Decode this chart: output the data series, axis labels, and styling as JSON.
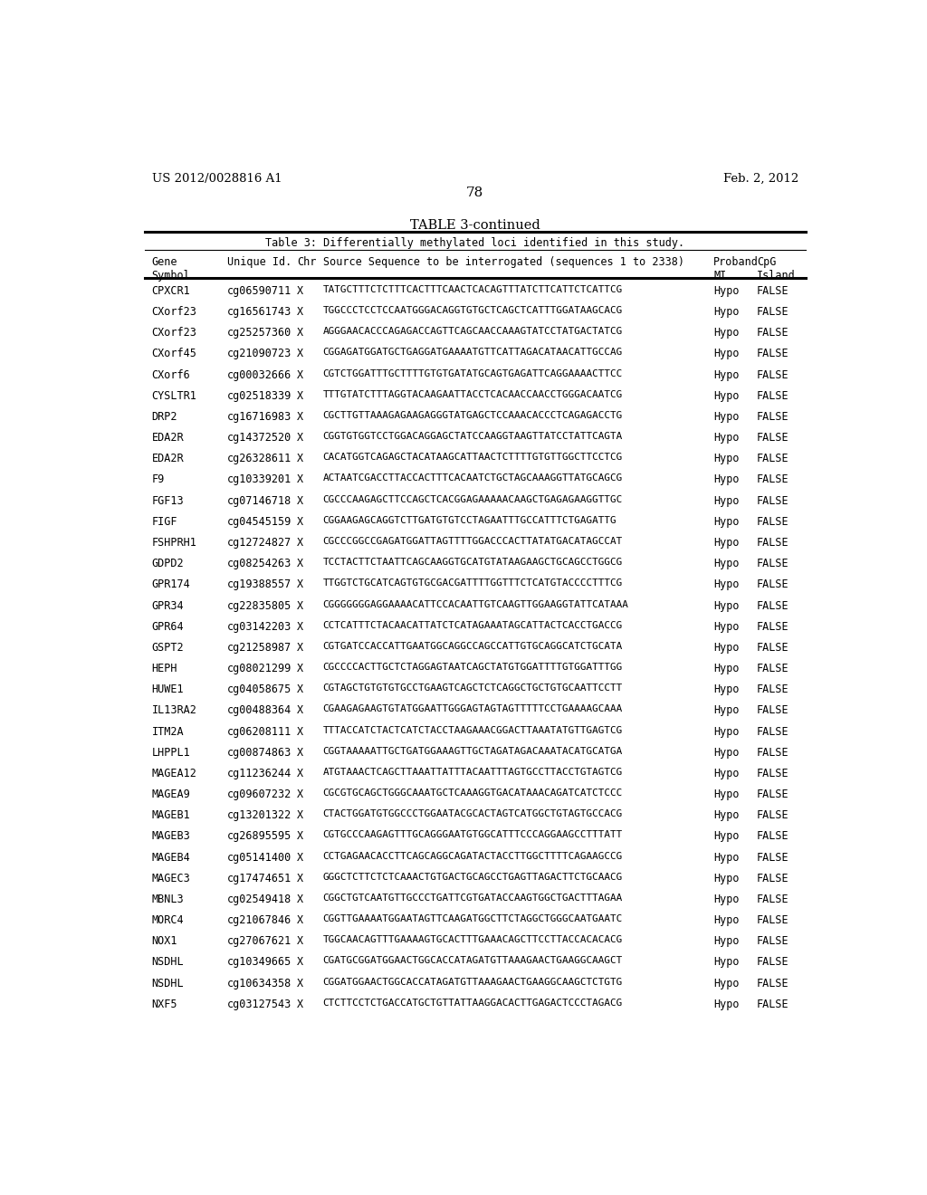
{
  "header_left": "US 2012/0028816 A1",
  "header_right": "Feb. 2, 2012",
  "page_number": "78",
  "table_title": "TABLE 3-continued",
  "table_subtitle": "Table 3: Differentially methylated loci identified in this study.",
  "rows": [
    [
      "CPXCR1",
      "cg06590711",
      "X",
      "TATGCTTTCTCTTTCACTTTCAACTCACAGTTTATCTTCATTCTCATTCG",
      "Hypo",
      "FALSE"
    ],
    [
      "CXorf23",
      "cg16561743",
      "X",
      "TGGCCCTCCTCCAATGGGACAGGTGTGCTCAGCTCATTTGGATAAGCACG",
      "Hypo",
      "FALSE"
    ],
    [
      "CXorf23",
      "cg25257360",
      "X",
      "AGGGAACACCCAGAGACCAGTTCAGCAACCAAAGTATCCTATGACTATCG",
      "Hypo",
      "FALSE"
    ],
    [
      "CXorf45",
      "cg21090723",
      "X",
      "CGGAGATGGATGCTGAGGATGAAAATGTTCATTAGACATAACATTGCCAG",
      "Hypo",
      "FALSE"
    ],
    [
      "CXorf6",
      "cg00032666",
      "X",
      "CGTCTGGATTTGCTTTTGTGTGATATGCAGTGAGATTCAGGAAAACTTCC",
      "Hypo",
      "FALSE"
    ],
    [
      "CYSLTR1",
      "cg02518339",
      "X",
      "TTTGTATCTTTAGGTACAAGAATTACCTCACAACCAACCTGGGACAATCG",
      "Hypo",
      "FALSE"
    ],
    [
      "DRP2",
      "cg16716983",
      "X",
      "CGCTTGTTAAAGAGAAGAGGGTATGAGCTCCAAACACCCTCAGAGACCTG",
      "Hypo",
      "FALSE"
    ],
    [
      "EDA2R",
      "cg14372520",
      "X",
      "CGGTGTGGTCCTGGACAGGAGCTATCCAAGGTAAGTTATCCTATTCAGTA",
      "Hypo",
      "FALSE"
    ],
    [
      "EDA2R",
      "cg26328611",
      "X",
      "CACATGGTCAGAGCTACATAAGCATTAACTCTTTTGTGTTGGCTTCCTCG",
      "Hypo",
      "FALSE"
    ],
    [
      "F9",
      "cg10339201",
      "X",
      "ACTAATCGACCTTACCACTTTCACAATCTGCTAGCAAAGGTTATGCAGCG",
      "Hypo",
      "FALSE"
    ],
    [
      "FGF13",
      "cg07146718",
      "X",
      "CGCCCAAGAGCTTCCAGCTCACGGAGAAAAACAAGCTGAGAGAAGGTTGC",
      "Hypo",
      "FALSE"
    ],
    [
      "FIGF",
      "cg04545159",
      "X",
      "CGGAAGAGCAGGTCTTGATGTGTCCTAGAATTTGCCATTTCTGAGATTG",
      "Hypo",
      "FALSE"
    ],
    [
      "FSHPRH1",
      "cg12724827",
      "X",
      "CGCCCGGCCGAGATGGATTAGTTTTGGACCCACTTATATGACATAGCCAT",
      "Hypo",
      "FALSE"
    ],
    [
      "GDPD2",
      "cg08254263",
      "X",
      "TCCTACTTCTAATTCAGCAAGGTGCATGTATAAGAAGCTGCAGCCTGGCG",
      "Hypo",
      "FALSE"
    ],
    [
      "GPR174",
      "cg19388557",
      "X",
      "TTGGTCTGCATCAGTGTGCGACGATTTTGGTTTCTCATGTACCCCTTTCG",
      "Hypo",
      "FALSE"
    ],
    [
      "GPR34",
      "cg22835805",
      "X",
      "CGGGGGGGAGGAAAACATTCCACAATTGTCAAGTTGGAAGGTATTCATAAA",
      "Hypo",
      "FALSE"
    ],
    [
      "GPR64",
      "cg03142203",
      "X",
      "CCTCATTTCTACAACATTATCTCATAGAAATAGCATTACTCACCTGACCG",
      "Hypo",
      "FALSE"
    ],
    [
      "GSPT2",
      "cg21258987",
      "X",
      "CGTGATCCACCATTGAATGGCAGGCCAGCCATTGTGCAGGCATCTGCATA",
      "Hypo",
      "FALSE"
    ],
    [
      "HEPH",
      "cg08021299",
      "X",
      "CGCCCCACTTGCTCTAGGAGTAATCAGCTATGTGGATTTTGTGGATTTGG",
      "Hypo",
      "FALSE"
    ],
    [
      "HUWE1",
      "cg04058675",
      "X",
      "CGTAGCTGTGTGTGCCTGAAGTCAGCTCTCAGGCTGCTGTGCAATTCCTT",
      "Hypo",
      "FALSE"
    ],
    [
      "IL13RA2",
      "cg00488364",
      "X",
      "CGAAGAGAAGTGTATGGAATTGGGAGTAGTAGTTTTTCCTGAAAAGCAAA",
      "Hypo",
      "FALSE"
    ],
    [
      "ITM2A",
      "cg06208111",
      "X",
      "TTTACCATCTACTCATCTACCTAAGAAACGGACTTAAATATGTTGAGTCG",
      "Hypo",
      "FALSE"
    ],
    [
      "LHPPL1",
      "cg00874863",
      "X",
      "CGGTAAAAATTGCTGATGGAAAGTTGCTAGATAGACAAATACATGCATGA",
      "Hypo",
      "FALSE"
    ],
    [
      "MAGEA12",
      "cg11236244",
      "X",
      "ATGTAAACTCAGCTTAAATTATTTACAATTTAGTGCCTTACCTGTAGTCG",
      "Hypo",
      "FALSE"
    ],
    [
      "MAGEA9",
      "cg09607232",
      "X",
      "CGCGTGCAGCTGGGCAAATGCTCAAAGGTGACATAAACAGATCATCTCCC",
      "Hypo",
      "FALSE"
    ],
    [
      "MAGEB1",
      "cg13201322",
      "X",
      "CTACTGGATGTGGCCCTGGAATACGCACTAGTCATGGCTGTAGTGCCACG",
      "Hypo",
      "FALSE"
    ],
    [
      "MAGEB3",
      "cg26895595",
      "X",
      "CGTGCCCAAGAGTTTGCAGGGAATGTGGCATTTCCCAGGAAGCCTTTATT",
      "Hypo",
      "FALSE"
    ],
    [
      "MAGEB4",
      "cg05141400",
      "X",
      "CCTGAGAACACCTTCAGCAGGCAGATACTACCTTGGCTTTTCAGAAGCCG",
      "Hypo",
      "FALSE"
    ],
    [
      "MAGEC3",
      "cg17474651",
      "X",
      "GGGCTCTTCTCTCAAACTGTGACTGCAGCCTGAGTTAGACTTCTGCAACG",
      "Hypo",
      "FALSE"
    ],
    [
      "MBNL3",
      "cg02549418",
      "X",
      "CGGCTGTCAATGTTGCCCTGATTCGTGATACCAAGTGGCTGACTTTAGAA",
      "Hypo",
      "FALSE"
    ],
    [
      "MORC4",
      "cg21067846",
      "X",
      "CGGTTGAAAATGGAATAGTTCAAGATGGCTTCTAGGCTGGGCAATGAATC",
      "Hypo",
      "FALSE"
    ],
    [
      "NOX1",
      "cg27067621",
      "X",
      "TGGCAACAGTTTGAAAAGTGCACTTTGAAACAGCTTCCTTACCACACACG",
      "Hypo",
      "FALSE"
    ],
    [
      "NSDHL",
      "cg10349665",
      "X",
      "CGATGCGGATGGAACTGGCACCATAGATGTTAAAGAACTGAAGGCAAGCT",
      "Hypo",
      "FALSE"
    ],
    [
      "NSDHL",
      "cg10634358",
      "X",
      "CGGATGGAACTGGCACCATAGATGTTAAAGAACTGAAGGCAAGCTCTGTG",
      "Hypo",
      "FALSE"
    ],
    [
      "NXF5",
      "cg03127543",
      "X",
      "CTCTTCCTCTGACCATGCTGTTATTAAGGACACTTGAGACTCCCTAGACG",
      "Hypo",
      "FALSE"
    ]
  ],
  "bg_color": "#ffffff",
  "text_color": "#000000"
}
